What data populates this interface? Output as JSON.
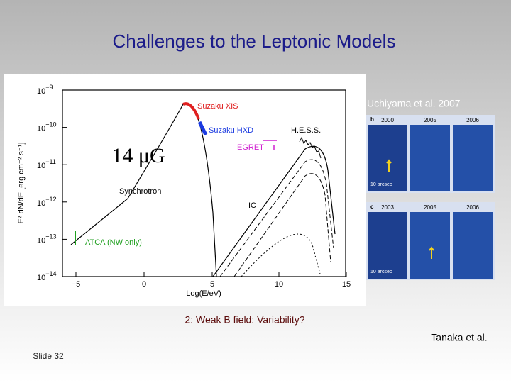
{
  "slide": {
    "title": "Challenges to the Leptonic Models",
    "caption_top": "Uchiyama et al. 2007",
    "subtitle": "2: Weak B field: Variability?",
    "caption_bottom": "Tanaka et al.",
    "slide_number": "Slide 32"
  },
  "figure": {
    "x_label": "Log(E/eV)",
    "y_label": "E² dN/dE [erg cm⁻² s⁻¹]",
    "x_ticks": [
      "−5",
      "0",
      "5",
      "10",
      "15"
    ],
    "y_ticks": [
      {
        "base": "10",
        "exp": "−9"
      },
      {
        "base": "10",
        "exp": "−10"
      },
      {
        "base": "10",
        "exp": "−11"
      },
      {
        "base": "10",
        "exp": "−12"
      },
      {
        "base": "10",
        "exp": "−13"
      },
      {
        "base": "10",
        "exp": "−14"
      }
    ],
    "field_label": "14 μG",
    "annotations": [
      "Suzaku XIS",
      "Suzaku HXD",
      "H.E.S.S.",
      "EGRET",
      "Synchrotron",
      "IC",
      "ATCA (NW only)"
    ]
  },
  "images": {
    "rows": [
      {
        "label": "b",
        "years": [
          "2000",
          "2005",
          "2006"
        ],
        "scale": "10 arcsec"
      },
      {
        "label": "c",
        "years": [
          "2003",
          "2005",
          "2006"
        ],
        "scale": "10 arcsec"
      }
    ]
  }
}
